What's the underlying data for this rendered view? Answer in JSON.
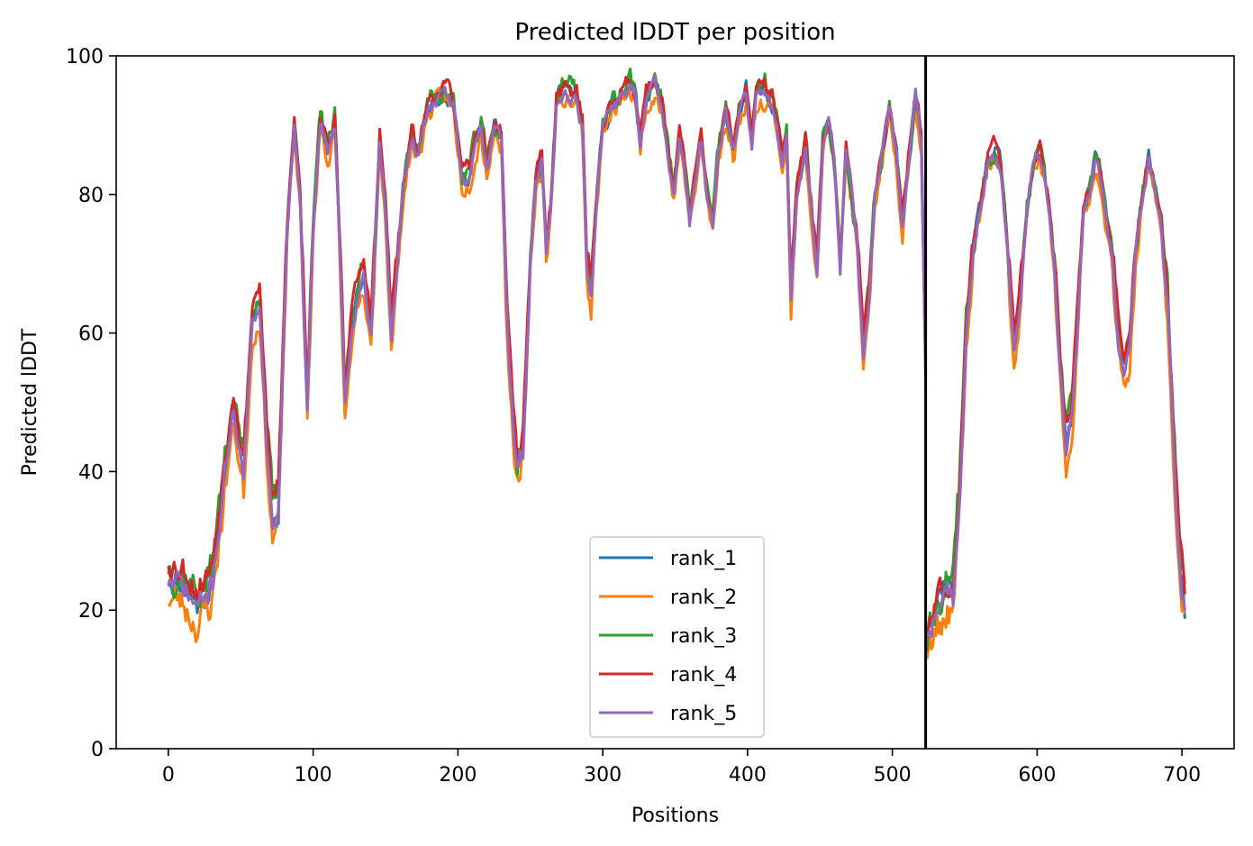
{
  "chart_data": {
    "type": "line",
    "title": "Predicted lDDT per position",
    "xlabel": "Positions",
    "ylabel": "Predicted lDDT",
    "xlim": [
      -36,
      736
    ],
    "ylim": [
      0,
      100
    ],
    "xticks": [
      0,
      100,
      200,
      300,
      400,
      500,
      600,
      700
    ],
    "yticks": [
      0,
      20,
      40,
      60,
      80,
      100
    ],
    "xtick_labels": [
      "0",
      "100",
      "200",
      "300",
      "400",
      "500",
      "600",
      "700"
    ],
    "ytick_labels": [
      "0",
      "20",
      "40",
      "60",
      "80",
      "100"
    ],
    "vline_x": 523,
    "legend_position": "lower center",
    "base_profile": [
      [
        0,
        25
      ],
      [
        10,
        24
      ],
      [
        20,
        21
      ],
      [
        30,
        24
      ],
      [
        40,
        42
      ],
      [
        45,
        50
      ],
      [
        52,
        40
      ],
      [
        58,
        62
      ],
      [
        63,
        65
      ],
      [
        68,
        45
      ],
      [
        72,
        33
      ],
      [
        76,
        35
      ],
      [
        82,
        75
      ],
      [
        87,
        90
      ],
      [
        91,
        80
      ],
      [
        96,
        50
      ],
      [
        100,
        75
      ],
      [
        105,
        91
      ],
      [
        110,
        86
      ],
      [
        115,
        90
      ],
      [
        118,
        75
      ],
      [
        122,
        50
      ],
      [
        126,
        60
      ],
      [
        130,
        65
      ],
      [
        135,
        68
      ],
      [
        140,
        60
      ],
      [
        146,
        88
      ],
      [
        150,
        78
      ],
      [
        154,
        60
      ],
      [
        158,
        70
      ],
      [
        162,
        80
      ],
      [
        168,
        88
      ],
      [
        172,
        86
      ],
      [
        180,
        93
      ],
      [
        190,
        95
      ],
      [
        197,
        93
      ],
      [
        203,
        82
      ],
      [
        208,
        83
      ],
      [
        212,
        87
      ],
      [
        216,
        90
      ],
      [
        220,
        84
      ],
      [
        225,
        90
      ],
      [
        230,
        88
      ],
      [
        234,
        62
      ],
      [
        238,
        48
      ],
      [
        241,
        40
      ],
      [
        245,
        44
      ],
      [
        250,
        70
      ],
      [
        254,
        82
      ],
      [
        258,
        85
      ],
      [
        261,
        72
      ],
      [
        264,
        78
      ],
      [
        268,
        94
      ],
      [
        275,
        95
      ],
      [
        282,
        94
      ],
      [
        286,
        90
      ],
      [
        289,
        70
      ],
      [
        292,
        66
      ],
      [
        296,
        80
      ],
      [
        300,
        90
      ],
      [
        306,
        92
      ],
      [
        312,
        94
      ],
      [
        318,
        96
      ],
      [
        322,
        95
      ],
      [
        326,
        88
      ],
      [
        330,
        94
      ],
      [
        336,
        96
      ],
      [
        341,
        93
      ],
      [
        346,
        85
      ],
      [
        349,
        80
      ],
      [
        353,
        88
      ],
      [
        356,
        85
      ],
      [
        360,
        76
      ],
      [
        364,
        82
      ],
      [
        368,
        88
      ],
      [
        372,
        80
      ],
      [
        376,
        75
      ],
      [
        380,
        86
      ],
      [
        385,
        92
      ],
      [
        390,
        86
      ],
      [
        394,
        91
      ],
      [
        399,
        95
      ],
      [
        403,
        88
      ],
      [
        406,
        94
      ],
      [
        412,
        95
      ],
      [
        418,
        93
      ],
      [
        424,
        85
      ],
      [
        427,
        88
      ],
      [
        430,
        65
      ],
      [
        434,
        80
      ],
      [
        440,
        87
      ],
      [
        444,
        78
      ],
      [
        448,
        70
      ],
      [
        452,
        88
      ],
      [
        456,
        90
      ],
      [
        460,
        85
      ],
      [
        464,
        70
      ],
      [
        468,
        86
      ],
      [
        472,
        80
      ],
      [
        476,
        72
      ],
      [
        480,
        57
      ],
      [
        484,
        65
      ],
      [
        488,
        80
      ],
      [
        494,
        87
      ],
      [
        498,
        93
      ],
      [
        503,
        85
      ],
      [
        507,
        76
      ],
      [
        511,
        85
      ],
      [
        516,
        94
      ],
      [
        520,
        88
      ],
      [
        523,
        55
      ],
      [
        524,
        16
      ],
      [
        530,
        20
      ],
      [
        538,
        23
      ],
      [
        542,
        22
      ],
      [
        546,
        35
      ],
      [
        551,
        60
      ],
      [
        556,
        72
      ],
      [
        562,
        80
      ],
      [
        566,
        85
      ],
      [
        571,
        86
      ],
      [
        575,
        84
      ],
      [
        580,
        70
      ],
      [
        584,
        58
      ],
      [
        588,
        65
      ],
      [
        593,
        78
      ],
      [
        598,
        85
      ],
      [
        602,
        86
      ],
      [
        607,
        80
      ],
      [
        612,
        70
      ],
      [
        616,
        55
      ],
      [
        620,
        44
      ],
      [
        624,
        48
      ],
      [
        628,
        62
      ],
      [
        632,
        78
      ],
      [
        636,
        80
      ],
      [
        640,
        85
      ],
      [
        644,
        82
      ],
      [
        648,
        75
      ],
      [
        652,
        70
      ],
      [
        656,
        60
      ],
      [
        660,
        55
      ],
      [
        664,
        58
      ],
      [
        668,
        72
      ],
      [
        673,
        80
      ],
      [
        677,
        85
      ],
      [
        682,
        80
      ],
      [
        686,
        75
      ],
      [
        690,
        65
      ],
      [
        694,
        45
      ],
      [
        698,
        28
      ],
      [
        702,
        20
      ]
    ],
    "series": [
      {
        "name": "rank_1",
        "color": "#1f77b4",
        "offset": 0.0,
        "amp": 1.0,
        "seed": 11
      },
      {
        "name": "rank_2",
        "color": "#ff7f0e",
        "offset": -2.0,
        "amp": 1.2,
        "seed": 23
      },
      {
        "name": "rank_3",
        "color": "#2ca02c",
        "offset": 1.0,
        "amp": 1.4,
        "seed": 37
      },
      {
        "name": "rank_4",
        "color": "#d62728",
        "offset": 1.5,
        "amp": 1.0,
        "seed": 53
      },
      {
        "name": "rank_5",
        "color": "#9467bd",
        "offset": -0.5,
        "amp": 0.9,
        "seed": 71
      }
    ]
  }
}
